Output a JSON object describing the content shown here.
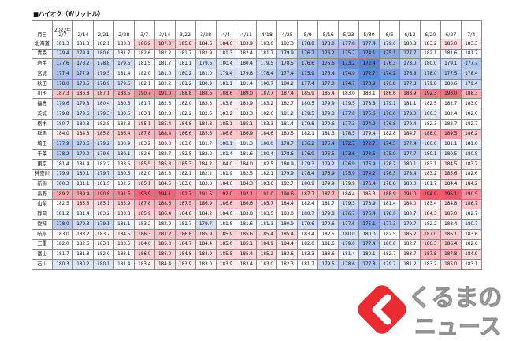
{
  "title": "■ハイオク（¥/リットル）",
  "header": {
    "row_label": "月日",
    "year": "2022年",
    "dates": [
      "2/7",
      "2/14",
      "2/21",
      "2/28",
      "3/7",
      "3/14",
      "3/22",
      "3/28",
      "4/4",
      "4/11",
      "4/18",
      "4/25",
      "5/9",
      "5/16",
      "5/23",
      "5/30",
      "6/6",
      "6/13",
      "6/20",
      "6/27",
      "7/4"
    ]
  },
  "rows": [
    {
      "name": "北海道",
      "values": [
        "181.3",
        "181.8",
        "182.1",
        "183.3",
        "186.2",
        "187.0",
        "185.8",
        "184.6",
        "184.6",
        "183.9",
        "183.0",
        "182.3",
        "178.8",
        "178.0",
        "177.8",
        "177.4",
        "179.6",
        "180.8",
        "183.2",
        "185.0",
        "183.3"
      ]
    },
    {
      "name": "青森",
      "values": [
        "179.4",
        "179.4",
        "180.6",
        "181.7",
        "182.6",
        "182.2",
        "181.7",
        "182.9",
        "181.3",
        "182.4",
        "181.7",
        "179.9",
        "176.7",
        "176.2",
        "175.7",
        "174.1",
        "175.1",
        "177.7",
        "182.1",
        "181.6",
        "181.7"
      ]
    },
    {
      "name": "岩手",
      "values": [
        "177.6",
        "178.2",
        "178.8",
        "179.6",
        "181.5",
        "181.7",
        "181.1",
        "179.6",
        "180.4",
        "180.4",
        "179.5",
        "178.5",
        "176.6",
        "175.6",
        "173.2",
        "172.4",
        "176.3",
        "178.0",
        "180.0",
        "179.1",
        "177.7"
      ]
    },
    {
      "name": "宮城",
      "values": [
        "177.4",
        "177.9",
        "179.5",
        "181.4",
        "182.0",
        "181.0",
        "180.2",
        "181.0",
        "179.4",
        "179.8",
        "178.4",
        "177.4",
        "175.9",
        "176.4",
        "174.9",
        "172.7",
        "174.2",
        "176.8",
        "178.0",
        "177.5",
        "178.4"
      ]
    },
    {
      "name": "秋田",
      "values": [
        "178.0",
        "178.5",
        "178.9",
        "179.6",
        "182.1",
        "182.2",
        "181.2",
        "180.9",
        "181.1",
        "181.4",
        "180.7",
        "180.2",
        "177.4",
        "177.0",
        "174.7",
        "173.9",
        "176.8",
        "177.8",
        "179.8",
        "180.6",
        "179.4"
      ]
    },
    {
      "name": "山形",
      "values": [
        "187.3",
        "186.8",
        "187.1",
        "188.5",
        "190.7",
        "191.0",
        "188.8",
        "188.6",
        "188.6",
        "189.0",
        "187.7",
        "187.4",
        "185.9",
        "185.4",
        "183.0",
        "183.1",
        "186.6",
        "188.9",
        "192.3",
        "193.0",
        "188.3"
      ]
    },
    {
      "name": "福島",
      "values": [
        "179.6",
        "179.8",
        "180.4",
        "180.6",
        "181.7",
        "182.3",
        "182.0",
        "183.3",
        "183.8",
        "183.9",
        "183.2",
        "182.7",
        "180.5",
        "179.9",
        "179.5",
        "178.8",
        "179.1",
        "181.1",
        "182.5",
        "182.7",
        "183.0"
      ]
    },
    {
      "name": "茨城",
      "values": [
        "179.8",
        "179.6",
        "179.3",
        "180.5",
        "183.1",
        "182.8",
        "182.2",
        "182.6",
        "183.2",
        "183.3",
        "182.6",
        "181.2",
        "179.5",
        "179.3",
        "177.0",
        "175.6",
        "176.0",
        "178.0",
        "180.3",
        "182.4",
        "182.0"
      ]
    },
    {
      "name": "栃木",
      "values": [
        "180.7",
        "180.8",
        "182.5",
        "182.8",
        "185.1",
        "185.4",
        "184.8",
        "184.8",
        "185.1",
        "185.1",
        "183.3",
        "181.4",
        "179.8",
        "179.6",
        "177.3",
        "174.9",
        "176.8",
        "179.4",
        "182.3",
        "182.7",
        "182.7"
      ]
    },
    {
      "name": "群馬",
      "values": [
        "184.0",
        "184.8",
        "185.8",
        "186.4",
        "187.8",
        "188.4",
        "186.6",
        "185.6",
        "186.8",
        "186.9",
        "184.6",
        "183.5",
        "182.1",
        "181.3",
        "178.5",
        "179.4",
        "182.8",
        "184.7",
        "188.0",
        "189.5",
        "186.2"
      ]
    },
    {
      "name": "埼玉",
      "values": [
        "177.9",
        "178.6",
        "179.2",
        "180.9",
        "183.2",
        "183.3",
        "183.0",
        "181.7",
        "180.1",
        "181.3",
        "180.0",
        "178.7",
        "176.2",
        "175.4",
        "172.7",
        "172.7",
        "174.5",
        "177.4",
        "180.0",
        "181.1",
        "181.0"
      ]
    },
    {
      "name": "千葉",
      "values": [
        "178.2",
        "179.0",
        "179.6",
        "180.1",
        "182.6",
        "182.7",
        "182.5",
        "182.0",
        "181.4",
        "181.6",
        "180.4",
        "178.6",
        "176.9",
        "176.5",
        "173.6",
        "173.5",
        "175.9",
        "177.7",
        "180.1",
        "180.5",
        "180.5"
      ]
    },
    {
      "name": "東京",
      "values": [
        "181.4",
        "181.4",
        "182.2",
        "183.5",
        "185.5",
        "185.3",
        "185.3",
        "184.2",
        "184.0",
        "184.0",
        "182.5",
        "180.9",
        "179.3",
        "179.2",
        "176.9",
        "176.9",
        "178.2",
        "180.1",
        "183.1",
        "184.5",
        "183.7"
      ]
    },
    {
      "name": "神奈川",
      "values": [
        "179.9",
        "180.1",
        "179.7",
        "180.6",
        "182.0",
        "182.3",
        "182.1",
        "182.2",
        "181.9",
        "182.5",
        "182.1",
        "179.9",
        "178.4",
        "176.9",
        "175.9",
        "174.2",
        "176.3",
        "178.4",
        "183.2",
        "185.6",
        "182.6"
      ]
    },
    {
      "name": "新潟",
      "values": [
        "180.3",
        "181.1",
        "181.5",
        "182.5",
        "185.1",
        "184.5",
        "183.6",
        "183.0",
        "184.0",
        "184.3",
        "183.6",
        "182.7",
        "180.9",
        "179.9",
        "179.9",
        "176.4",
        "178.8",
        "180.0",
        "181.7",
        "184.4",
        "184.2"
      ]
    },
    {
      "name": "長野",
      "values": [
        "189.2",
        "189.4",
        "190.8",
        "191.6",
        "193.9",
        "194.1",
        "192.7",
        "191.5",
        "192.0",
        "192.1",
        "191.0",
        "190.6",
        "187.7",
        "187.7",
        "184.4",
        "185.3",
        "188.9",
        "191.0",
        "194.9",
        "195.1",
        "190.5"
      ]
    },
    {
      "name": "山梨",
      "values": [
        "182.5",
        "185.5",
        "185.1",
        "185.9",
        "187.8",
        "188.6",
        "187.5",
        "186.9",
        "186.6",
        "186.6",
        "185.7",
        "184.4",
        "182.4",
        "181.7",
        "179.3",
        "178.9",
        "181.4",
        "184.0",
        "183.4",
        "184.8",
        "186.7"
      ]
    },
    {
      "name": "静岡",
      "values": [
        "181.2",
        "181.4",
        "183.2",
        "183.8",
        "185.9",
        "186.4",
        "184.8",
        "184.2",
        "184.0",
        "183.8",
        "183.5",
        "183.0",
        "180.7",
        "179.8",
        "176.7",
        "176.4",
        "178.0",
        "180.7",
        "184.3",
        "185.0",
        "182.7"
      ]
    },
    {
      "name": "愛知",
      "values": [
        "178.0",
        "179.3",
        "179.1",
        "181.1",
        "183.2",
        "182.9",
        "181.7",
        "179.7",
        "181.8",
        "181.6",
        "181.3",
        "180.9",
        "179.6",
        "179.6",
        "177.6",
        "175.1",
        "177.3",
        "179.7",
        "182.2",
        "183.4",
        "180.7"
      ]
    },
    {
      "name": "岐阜",
      "values": [
        "183.0",
        "183.2",
        "183.7",
        "184.5",
        "186.3",
        "187.2",
        "186.8",
        "185.9",
        "185.9",
        "185.6",
        "185.4",
        "185.4",
        "183.4",
        "182.5",
        "180.0",
        "180.0",
        "182.5",
        "185.2",
        "187.0",
        "186.1",
        "183.6"
      ]
    },
    {
      "name": "三重",
      "values": [
        "182.0",
        "182.6",
        "183.1",
        "183.5",
        "184.6",
        "185.3",
        "184.7",
        "184.4",
        "185.0",
        "185.1",
        "184.9",
        "184.4",
        "182.0",
        "181.6",
        "179.0",
        "177.4",
        "180.8",
        "182.7",
        "186.3",
        "186.4",
        "182.6"
      ]
    },
    {
      "name": "富山",
      "values": [
        "181.7",
        "181.8",
        "182.0",
        "183.1",
        "186.0",
        "186.0",
        "184.8",
        "184.9",
        "185.5",
        "185.4",
        "185.2",
        "183.6",
        "183.3",
        "183.6",
        "181.4",
        "180.1",
        "182.7",
        "183.7",
        "187.8",
        "187.8",
        "184.9"
      ]
    },
    {
      "name": "石川",
      "values": [
        "180.3",
        "180.2",
        "180.1",
        "181.4",
        "183.4",
        "184.4",
        "183.9",
        "183.0",
        "183.9",
        "183.4",
        "183.0",
        "182.3",
        "181.7",
        "179.5",
        "178.6",
        "177.8",
        "179.7",
        "181.2",
        "183.2",
        "185.0",
        "183.1"
      ]
    }
  ],
  "colors": {
    "low": "#5b85d3",
    "mid": "#ffffff",
    "high": "#ea5a67"
  },
  "logo": {
    "text_line1": "くるまの",
    "text_line2": "ニュース",
    "badge_color": "#e8151c",
    "badge_icon": "chevron-left-icon"
  }
}
